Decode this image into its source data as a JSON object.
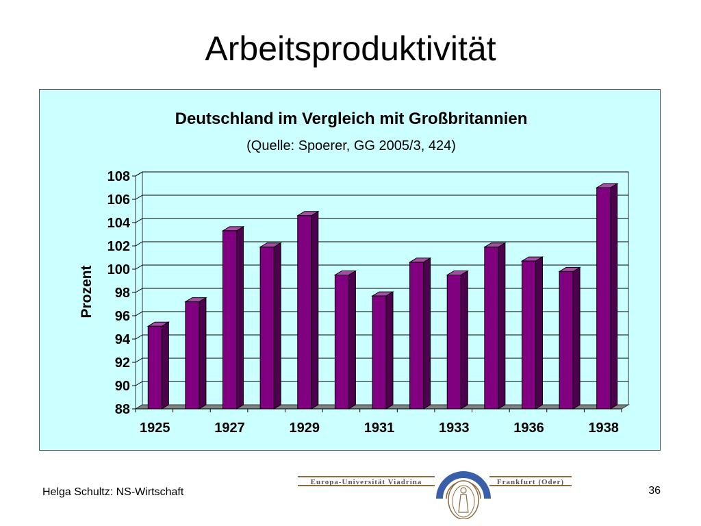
{
  "slide": {
    "title": "Arbeitsproduktivität",
    "footer_author": "Helga Schultz: NS-Wirtschaft",
    "page_number": "36"
  },
  "logo": {
    "left_text": "Europa-Universität Viadrina",
    "right_text": "Frankfurt (Oder)",
    "colors": {
      "blue": "#3b5ea8",
      "brown": "#8b6a3e"
    }
  },
  "chart_data": {
    "type": "bar",
    "title": "Deutschland im Vergleich mit Großbritannien",
    "subtitle": "(Quelle: Spoerer, GG 2005/3, 424)",
    "ylabel": "Prozent",
    "xlabel": "",
    "ylim": [
      88,
      108
    ],
    "yticks": [
      88,
      90,
      92,
      94,
      96,
      98,
      100,
      102,
      104,
      106,
      108
    ],
    "xtick_labels": [
      "1925",
      "1927",
      "1929",
      "1931",
      "1933",
      "1936",
      "1938"
    ],
    "values": [
      95.1,
      97.2,
      103.3,
      101.9,
      104.6,
      99.5,
      97.7,
      100.6,
      99.5,
      101.9,
      100.7,
      99.8,
      107.0
    ],
    "grid": true,
    "legend": false,
    "colors": {
      "bar": "#800080",
      "background": "#ccffff",
      "floor": "#808080"
    }
  }
}
